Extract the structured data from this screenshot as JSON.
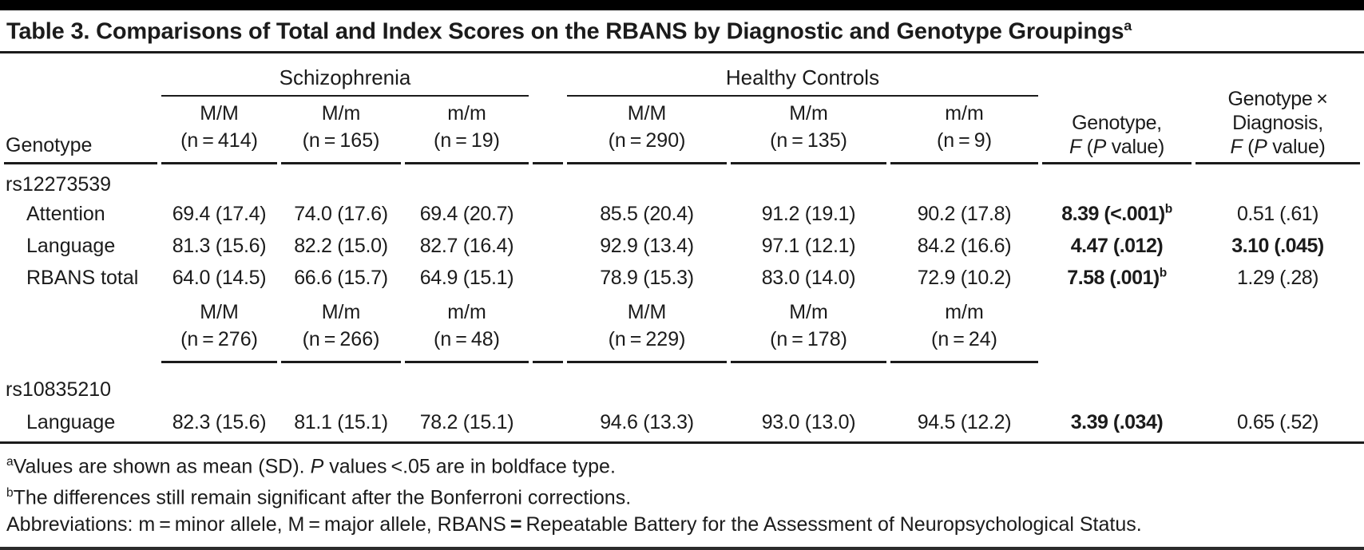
{
  "title": {
    "html": "Table 3. Comparisons of Total and Index Scores on the RBANS by Diagnostic and Genotype Groupings<sup>a</sup>"
  },
  "table": {
    "groups": {
      "schizophrenia": "Schizophrenia",
      "healthy": "Healthy Controls"
    },
    "header": {
      "stub": "Genotype",
      "alleles1": [
        "M/M",
        "M/m",
        "m/m",
        "M/M",
        "M/m",
        "m/m"
      ],
      "ns1": [
        "(n = 414)",
        "(n = 165)",
        "(n = 19)",
        "(n = 290)",
        "(n = 135)",
        "(n = 9)"
      ],
      "f_html": "Genotype,<br><i>F</i> (<i>P</i> value)",
      "fx_html": "Genotype ×<br>Diagnosis,<br><i>F</i> (<i>P</i> value)"
    },
    "midheader": {
      "alleles2": [
        "M/M",
        "M/m",
        "m/m",
        "M/M",
        "M/m",
        "m/m"
      ],
      "ns2": [
        "(n = 276)",
        "(n = 266)",
        "(n = 48)",
        "(n = 229)",
        "(n = 178)",
        "(n = 24)"
      ]
    },
    "section1": {
      "label": "rs12273539",
      "rows": [
        {
          "label": "Attention",
          "v": [
            "69.4 (17.4)",
            "74.0 (17.6)",
            "69.4 (20.7)",
            "85.5 (20.4)",
            "91.2 (19.1)",
            "90.2 (17.8)"
          ],
          "f_html": "<b>8.39 (&lt;.001)<sup>b</sup></b>",
          "fx_html": "0.51 (.61)"
        },
        {
          "label": "Language",
          "v": [
            "81.3 (15.6)",
            "82.2 (15.0)",
            "82.7 (16.4)",
            "92.9 (13.4)",
            "97.1 (12.1)",
            "84.2 (16.6)"
          ],
          "f_html": "<b>4.47 (.012)</b>",
          "fx_html": "<b>3.10 (.045)</b>"
        },
        {
          "label": "RBANS total",
          "v": [
            "64.0 (14.5)",
            "66.6 (15.7)",
            "64.9 (15.1)",
            "78.9 (15.3)",
            "83.0 (14.0)",
            "72.9 (10.2)"
          ],
          "f_html": "<b>7.58 (.001)<sup>b</sup></b>",
          "fx_html": "1.29 (.28)"
        }
      ]
    },
    "section2": {
      "label": "rs10835210",
      "rows": [
        {
          "label": "Language",
          "v": [
            "82.3 (15.6)",
            "81.1 (15.1)",
            "78.2 (15.1)",
            "94.6 (13.3)",
            "93.0 (13.0)",
            "94.5 (12.2)"
          ],
          "f_html": "<b>3.39 (.034)</b>",
          "fx_html": "0.65 (.52)"
        }
      ]
    }
  },
  "footnotes": {
    "a_html": "<sup>a</sup>Values are shown as mean (SD). <i>P</i> values &lt;.05 are in boldface type.",
    "b_html": "<sup>b</sup>The differences still remain significant after the Bonferroni corrections.",
    "abbrev_html": "Abbreviations: m = minor allele, M = major allele, RBANS <b>=</b> Repeatable Battery for the Assessment of Neuropsychological Status."
  }
}
